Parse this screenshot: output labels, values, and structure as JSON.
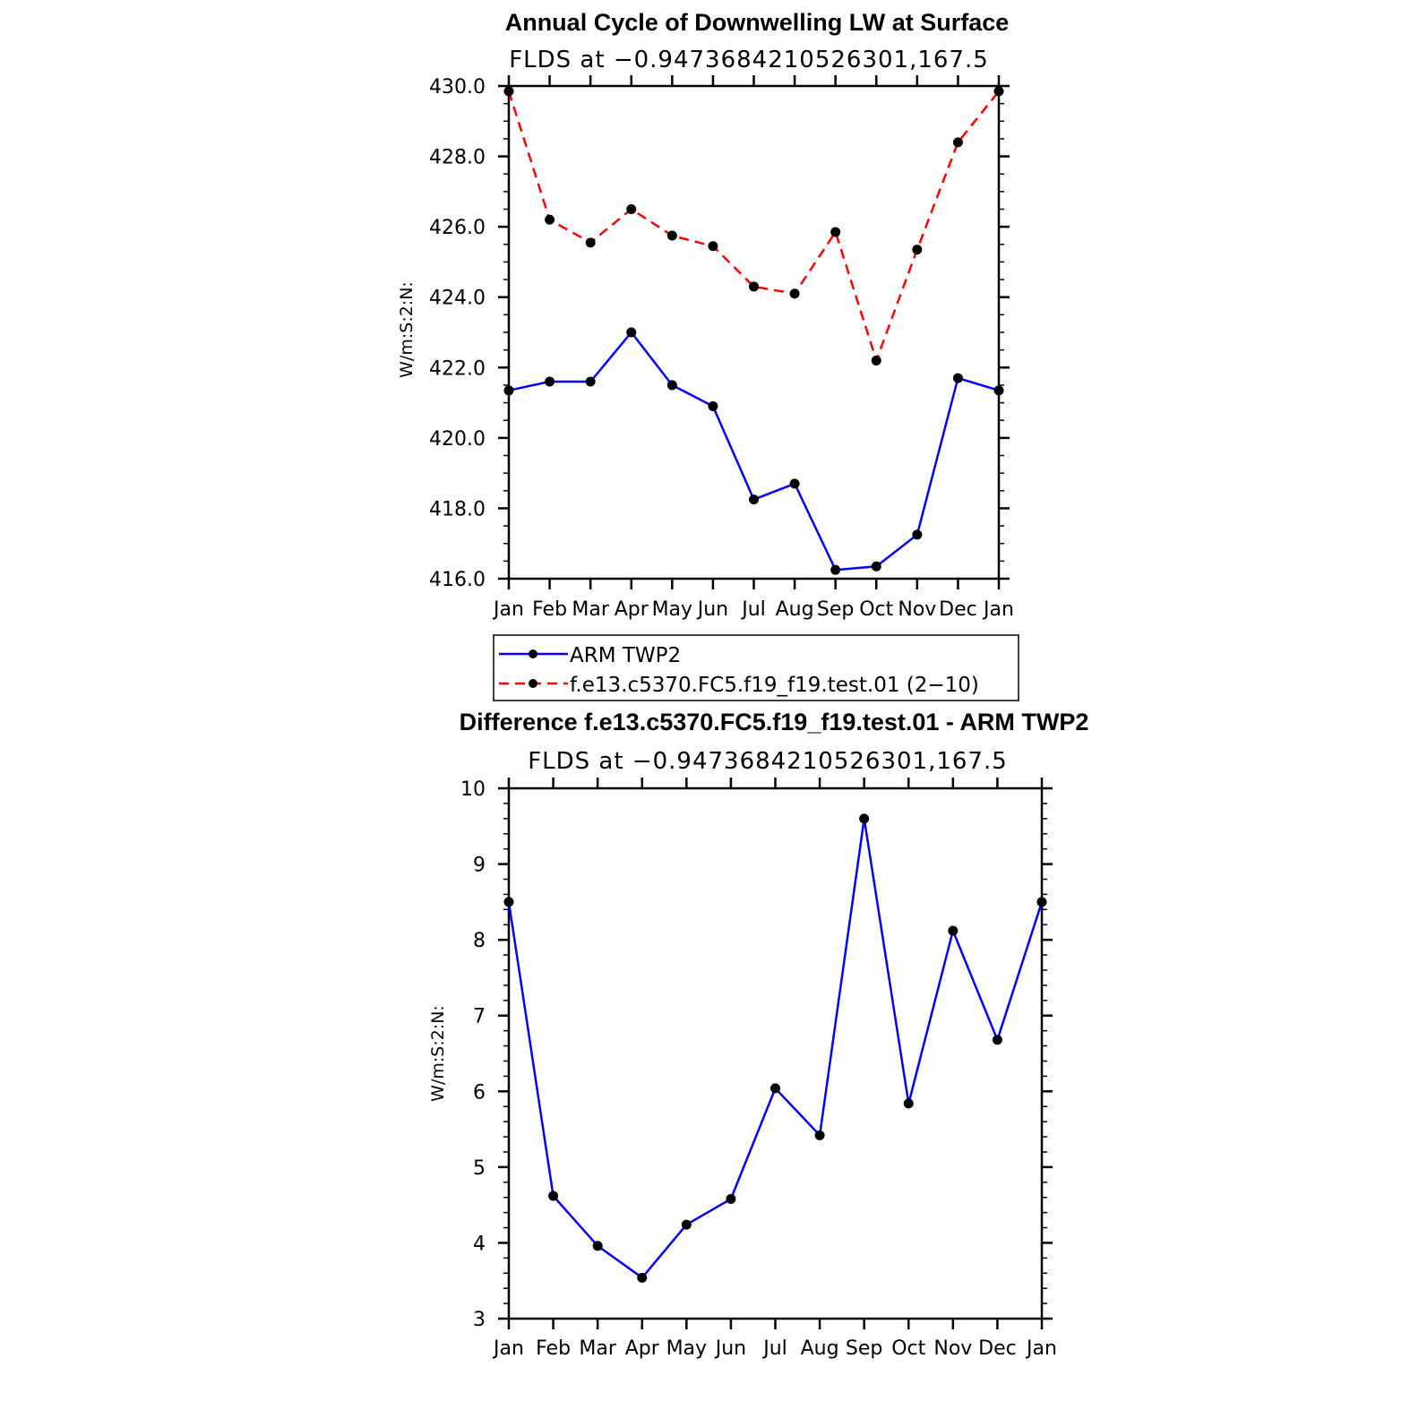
{
  "chart_data": [
    {
      "type": "line",
      "title": "Annual Cycle of Downwelling LW at Surface",
      "subtitle": "FLDS at −0.9473684210526301,167.5",
      "ylabel": "W/m:S:2:N:",
      "xlabel": "",
      "ylim": [
        416,
        430
      ],
      "yticks": [
        "416.0",
        "418.0",
        "420.0",
        "422.0",
        "424.0",
        "426.0",
        "428.0",
        "430.0"
      ],
      "categories": [
        "Jan",
        "Feb",
        "Mar",
        "Apr",
        "May",
        "Jun",
        "Jul",
        "Aug",
        "Sep",
        "Oct",
        "Nov",
        "Dec",
        "Jan"
      ],
      "series": [
        {
          "name": "ARM TWP2",
          "color": "#0000ff",
          "dash": "solid",
          "values": [
            421.35,
            421.6,
            421.6,
            423.0,
            421.5,
            420.9,
            418.25,
            418.7,
            416.25,
            416.35,
            417.25,
            421.7,
            421.35
          ]
        },
        {
          "name": "f.e13.c5370.FC5.f19_f19.test.01 (2−10)",
          "color": "#ff0000",
          "dash": "dashed",
          "values": [
            429.85,
            426.2,
            425.55,
            426.5,
            425.75,
            425.45,
            424.3,
            424.1,
            425.85,
            422.2,
            425.35,
            428.4,
            429.85
          ]
        }
      ],
      "legend": "below"
    },
    {
      "type": "line",
      "title": "Difference f.e13.c5370.FC5.f19_f19.test.01 - ARM TWP2",
      "subtitle": "FLDS at −0.9473684210526301,167.5",
      "ylabel": "W/m:S:2:N:",
      "xlabel": "",
      "ylim": [
        3,
        10
      ],
      "yticks": [
        "3",
        "4",
        "5",
        "6",
        "7",
        "8",
        "9",
        "10"
      ],
      "categories": [
        "Jan",
        "Feb",
        "Mar",
        "Apr",
        "May",
        "Jun",
        "Jul",
        "Aug",
        "Sep",
        "Oct",
        "Nov",
        "Dec",
        "Jan"
      ],
      "series": [
        {
          "name": "Difference",
          "color": "#0000ff",
          "dash": "solid",
          "values": [
            8.5,
            4.62,
            3.96,
            3.54,
            4.24,
            4.58,
            6.04,
            5.42,
            9.6,
            5.84,
            8.12,
            6.68,
            8.5
          ]
        }
      ]
    }
  ]
}
